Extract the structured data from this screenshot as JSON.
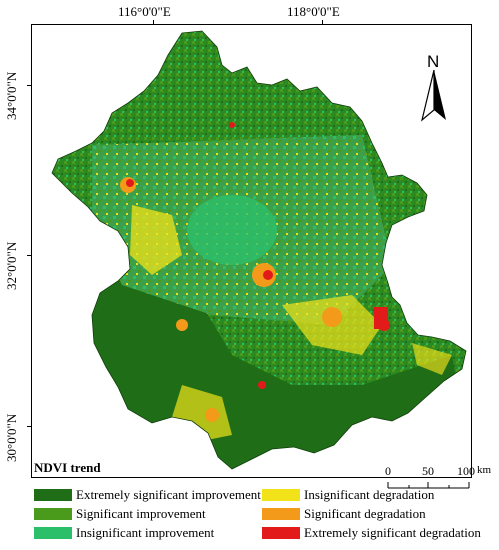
{
  "graticule": {
    "lon_labels": [
      "116°0'0\"E",
      "118°0'0\"E"
    ],
    "lat_labels": [
      "34°0'0\"N",
      "32°0'0\"N",
      "30°0'0\"N"
    ]
  },
  "north_arrow": {
    "label": "N",
    "icon": "north-arrow-icon"
  },
  "scale_bar": {
    "labels": [
      "0",
      "50",
      "100"
    ],
    "unit": "km"
  },
  "legend": {
    "title": "NDVI trend",
    "items": [
      {
        "label": "Extremely significant improvement",
        "color": "#1f6e17"
      },
      {
        "label": "Significant improvement",
        "color": "#4a9a1c"
      },
      {
        "label": "Insignificant improvement",
        "color": "#2cbf6a"
      },
      {
        "label": "Insignificant degradation",
        "color": "#f2e21a"
      },
      {
        "label": "Significant degradation",
        "color": "#f39a1a"
      },
      {
        "label": "Extremely significant degradation",
        "color": "#e31a1a"
      }
    ]
  }
}
